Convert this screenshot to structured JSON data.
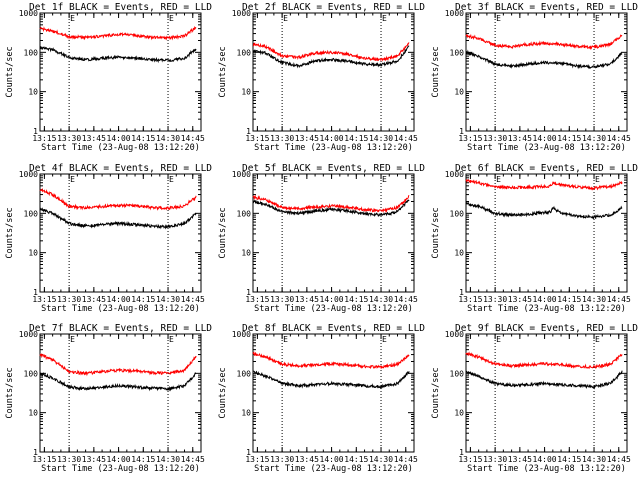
{
  "chart_data": [
    {
      "type": "line",
      "title": "Det 1f BLACK = Events, RED = LLD",
      "xlabel": "Start Time (23-Aug-08 13:12:20)",
      "ylabel": "Counts/sec",
      "yscale": "log",
      "ylim": [
        1,
        1000
      ],
      "xlim": [
        "13:12:20",
        "14:50:00"
      ],
      "xticks": [
        "13:15",
        "13:30",
        "13:45",
        "14:00",
        "14:15",
        "14:30",
        "14:45"
      ],
      "yticks": [
        "1",
        "10",
        "100",
        "1000"
      ],
      "markers": [
        {
          "label": "E",
          "time": "13:30"
        },
        {
          "label": "E",
          "time": "14:30"
        }
      ],
      "series": [
        {
          "color": "#ff0000",
          "x": [
            "13:12:20",
            "13:20",
            "13:30",
            "13:40",
            "13:50",
            "14:00",
            "14:10",
            "14:20",
            "14:30",
            "14:40",
            "14:47"
          ],
          "y": [
            400,
            350,
            250,
            240,
            260,
            290,
            270,
            240,
            230,
            260,
            430
          ]
        },
        {
          "color": "#000000",
          "x": [
            "13:12:20",
            "13:20",
            "13:30",
            "13:40",
            "13:50",
            "14:00",
            "14:10",
            "14:20",
            "14:30",
            "14:40",
            "14:47"
          ],
          "y": [
            130,
            115,
            75,
            65,
            70,
            75,
            70,
            65,
            62,
            70,
            125
          ]
        }
      ]
    },
    {
      "type": "line",
      "title": "Det 2f BLACK = Events, RED = LLD",
      "xlabel": "Start Time (23-Aug-08 13:12:20)",
      "ylabel": "Counts/sec",
      "yscale": "log",
      "ylim": [
        1,
        1000
      ],
      "xlim": [
        "13:12:20",
        "14:50:00"
      ],
      "xticks": [
        "13:15",
        "13:30",
        "13:45",
        "14:00",
        "14:15",
        "14:30",
        "14:45"
      ],
      "yticks": [
        "1",
        "10",
        "100",
        "1000"
      ],
      "markers": [
        {
          "label": "E",
          "time": "13:30"
        },
        {
          "label": "E",
          "time": "14:30"
        }
      ],
      "series": [
        {
          "color": "#ff0000",
          "x": [
            "13:12:20",
            "13:20",
            "13:30",
            "13:40",
            "13:50",
            "14:00",
            "14:10",
            "14:20",
            "14:30",
            "14:40",
            "14:47"
          ],
          "y": [
            160,
            140,
            80,
            75,
            95,
            100,
            90,
            70,
            65,
            80,
            180
          ]
        },
        {
          "color": "#000000",
          "x": [
            "13:12:20",
            "13:20",
            "13:30",
            "13:40",
            "13:50",
            "14:00",
            "14:10",
            "14:20",
            "14:30",
            "14:40",
            "14:47"
          ],
          "y": [
            110,
            95,
            55,
            45,
            60,
            65,
            60,
            50,
            48,
            60,
            140
          ]
        }
      ]
    },
    {
      "type": "line",
      "title": "Det 3f BLACK = Events, RED = LLD",
      "xlabel": "Start Time (23-Aug-08 13:12:20)",
      "ylabel": "Counts/sec",
      "yscale": "log",
      "ylim": [
        1,
        1000
      ],
      "xlim": [
        "13:12:20",
        "14:50:00"
      ],
      "xticks": [
        "13:15",
        "13:30",
        "13:45",
        "14:00",
        "14:15",
        "14:30",
        "14:45"
      ],
      "yticks": [
        "1",
        "10",
        "100",
        "1000"
      ],
      "markers": [
        {
          "label": "E",
          "time": "13:30"
        },
        {
          "label": "E",
          "time": "14:30"
        }
      ],
      "series": [
        {
          "color": "#ff0000",
          "x": [
            "13:12:20",
            "13:20",
            "13:30",
            "13:40",
            "13:50",
            "14:00",
            "14:10",
            "14:20",
            "14:30",
            "14:40",
            "14:47"
          ],
          "y": [
            260,
            230,
            150,
            140,
            160,
            170,
            160,
            140,
            135,
            160,
            270
          ]
        },
        {
          "color": "#000000",
          "x": [
            "13:12:20",
            "13:20",
            "13:30",
            "13:40",
            "13:50",
            "14:00",
            "14:10",
            "14:20",
            "14:30",
            "14:40",
            "14:47"
          ],
          "y": [
            100,
            80,
            50,
            45,
            50,
            55,
            52,
            45,
            42,
            50,
            95
          ]
        }
      ]
    },
    {
      "type": "line",
      "title": "Det 4f BLACK = Events, RED = LLD",
      "xlabel": "Start Time (23-Aug-08 13:12:20)",
      "ylabel": "Counts/sec",
      "yscale": "log",
      "ylim": [
        1,
        1000
      ],
      "xlim": [
        "13:12:20",
        "14:50:00"
      ],
      "xticks": [
        "13:15",
        "13:30",
        "13:45",
        "14:00",
        "14:15",
        "14:30",
        "14:45"
      ],
      "yticks": [
        "1",
        "10",
        "100",
        "1000"
      ],
      "markers": [
        {
          "label": "E",
          "time": "13:30"
        },
        {
          "label": "E",
          "time": "14:30"
        }
      ],
      "series": [
        {
          "color": "#ff0000",
          "x": [
            "13:12:20",
            "13:20",
            "13:30",
            "13:40",
            "13:50",
            "14:00",
            "14:10",
            "14:20",
            "14:30",
            "14:40",
            "14:47"
          ],
          "y": [
            400,
            300,
            150,
            140,
            150,
            160,
            155,
            140,
            135,
            155,
            260
          ]
        },
        {
          "color": "#000000",
          "x": [
            "13:12:20",
            "13:20",
            "13:30",
            "13:40",
            "13:50",
            "14:00",
            "14:10",
            "14:20",
            "14:30",
            "14:40",
            "14:47"
          ],
          "y": [
            130,
            100,
            55,
            48,
            52,
            55,
            52,
            48,
            45,
            55,
            100
          ]
        }
      ]
    },
    {
      "type": "line",
      "title": "Det 5f BLACK = Events, RED = LLD",
      "xlabel": "Start Time (23-Aug-08 13:12:20)",
      "ylabel": "Counts/sec",
      "yscale": "log",
      "ylim": [
        1,
        1000
      ],
      "xlim": [
        "13:12:20",
        "14:50:00"
      ],
      "xticks": [
        "13:15",
        "13:30",
        "13:45",
        "14:00",
        "14:15",
        "14:30",
        "14:45"
      ],
      "yticks": [
        "1",
        "10",
        "100",
        "1000"
      ],
      "markers": [
        {
          "label": "E",
          "time": "13:30"
        },
        {
          "label": "E",
          "time": "14:30"
        }
      ],
      "series": [
        {
          "color": "#ff0000",
          "x": [
            "13:12:20",
            "13:20",
            "13:30",
            "13:40",
            "13:50",
            "14:00",
            "14:10",
            "14:20",
            "14:30",
            "14:40",
            "14:47"
          ],
          "y": [
            260,
            220,
            140,
            130,
            145,
            155,
            145,
            125,
            115,
            140,
            270
          ]
        },
        {
          "color": "#000000",
          "x": [
            "13:12:20",
            "13:20",
            "13:30",
            "13:40",
            "13:50",
            "14:00",
            "14:10",
            "14:20",
            "14:30",
            "14:40",
            "14:47"
          ],
          "y": [
            200,
            170,
            110,
            100,
            115,
            125,
            115,
            100,
            90,
            110,
            220
          ]
        }
      ]
    },
    {
      "type": "line",
      "title": "Det 6f BLACK = Events, RED = LLD",
      "xlabel": "Start Time (23-Aug-08 13:12:20)",
      "ylabel": "Counts/sec",
      "yscale": "log",
      "ylim": [
        1,
        1000
      ],
      "xlim": [
        "13:12:20",
        "14:50:00"
      ],
      "xticks": [
        "13:15",
        "13:30",
        "13:45",
        "14:00",
        "14:15",
        "14:30",
        "14:45"
      ],
      "yticks": [
        "1",
        "10",
        "100",
        "1000"
      ],
      "markers": [
        {
          "label": "E",
          "time": "13:30"
        },
        {
          "label": "E",
          "time": "14:30"
        }
      ],
      "series": [
        {
          "color": "#ff0000",
          "x": [
            "13:12:20",
            "13:20",
            "13:30",
            "13:40",
            "13:50",
            "14:00",
            "14:04",
            "14:05",
            "14:10",
            "14:20",
            "14:30",
            "14:40",
            "14:47"
          ],
          "y": [
            700,
            600,
            470,
            450,
            460,
            480,
            500,
            620,
            520,
            470,
            440,
            480,
            600
          ]
        },
        {
          "color": "#000000",
          "x": [
            "13:12:20",
            "13:20",
            "13:30",
            "13:40",
            "13:50",
            "14:00",
            "14:04",
            "14:05",
            "14:10",
            "14:20",
            "14:30",
            "14:40",
            "14:47"
          ],
          "y": [
            180,
            150,
            100,
            90,
            95,
            105,
            110,
            140,
            100,
            85,
            80,
            90,
            140
          ]
        }
      ]
    },
    {
      "type": "line",
      "title": "Det 7f BLACK = Events, RED = LLD",
      "xlabel": "Start Time (23-Aug-08 13:12:20)",
      "ylabel": "Counts/sec",
      "yscale": "log",
      "ylim": [
        1,
        1000
      ],
      "xlim": [
        "13:12:20",
        "14:50:00"
      ],
      "xticks": [
        "13:15",
        "13:30",
        "13:45",
        "14:00",
        "14:15",
        "14:30",
        "14:45"
      ],
      "yticks": [
        "1",
        "10",
        "100",
        "1000"
      ],
      "markers": [
        {
          "label": "E",
          "time": "13:30"
        },
        {
          "label": "E",
          "time": "14:30"
        }
      ],
      "series": [
        {
          "color": "#ff0000",
          "x": [
            "13:12:20",
            "13:20",
            "13:30",
            "13:40",
            "13:50",
            "14:00",
            "14:10",
            "14:20",
            "14:30",
            "14:40",
            "14:47"
          ],
          "y": [
            300,
            220,
            110,
            100,
            110,
            120,
            115,
            105,
            100,
            120,
            260
          ]
        },
        {
          "color": "#000000",
          "x": [
            "13:12:20",
            "13:20",
            "13:30",
            "13:40",
            "13:50",
            "14:00",
            "14:10",
            "14:20",
            "14:30",
            "14:40",
            "14:47"
          ],
          "y": [
            100,
            75,
            45,
            40,
            45,
            48,
            45,
            42,
            40,
            48,
            100
          ]
        }
      ]
    },
    {
      "type": "line",
      "title": "Det 8f BLACK = Events, RED = LLD",
      "xlabel": "Start Time (23-Aug-08 13:12:20)",
      "ylabel": "Counts/sec",
      "yscale": "log",
      "ylim": [
        1,
        1000
      ],
      "xlim": [
        "13:12:20",
        "14:50:00"
      ],
      "xticks": [
        "13:15",
        "13:30",
        "13:45",
        "14:00",
        "14:15",
        "14:30",
        "14:45"
      ],
      "yticks": [
        "1",
        "10",
        "100",
        "1000"
      ],
      "markers": [
        {
          "label": "E",
          "time": "13:30"
        },
        {
          "label": "E",
          "time": "14:30"
        }
      ],
      "series": [
        {
          "color": "#ff0000",
          "x": [
            "13:12:20",
            "13:20",
            "13:30",
            "13:40",
            "13:50",
            "14:00",
            "14:10",
            "14:20",
            "14:30",
            "14:40",
            "14:47"
          ],
          "y": [
            320,
            260,
            170,
            155,
            165,
            175,
            165,
            150,
            145,
            170,
            300
          ]
        },
        {
          "color": "#000000",
          "x": [
            "13:12:20",
            "13:20",
            "13:30",
            "13:40",
            "13:50",
            "14:00",
            "14:10",
            "14:20",
            "14:30",
            "14:40",
            "14:47"
          ],
          "y": [
            110,
            85,
            55,
            48,
            52,
            55,
            52,
            48,
            46,
            55,
            110
          ]
        }
      ]
    },
    {
      "type": "line",
      "title": "Det 9f BLACK = Events, RED = LLD",
      "xlabel": "Start Time (23-Aug-08 13:12:20)",
      "ylabel": "Counts/sec",
      "yscale": "log",
      "ylim": [
        1,
        1000
      ],
      "xlim": [
        "13:12:20",
        "14:50:00"
      ],
      "xticks": [
        "13:15",
        "13:30",
        "13:45",
        "14:00",
        "14:15",
        "14:30",
        "14:45"
      ],
      "yticks": [
        "1",
        "10",
        "100",
        "1000"
      ],
      "markers": [
        {
          "label": "E",
          "time": "13:30"
        },
        {
          "label": "E",
          "time": "14:30"
        }
      ],
      "series": [
        {
          "color": "#ff0000",
          "x": [
            "13:12:20",
            "13:20",
            "13:30",
            "13:40",
            "13:50",
            "14:00",
            "14:10",
            "14:20",
            "14:30",
            "14:40",
            "14:47"
          ],
          "y": [
            320,
            260,
            170,
            155,
            165,
            175,
            165,
            150,
            145,
            170,
            310
          ]
        },
        {
          "color": "#000000",
          "x": [
            "13:12:20",
            "13:20",
            "13:30",
            "13:40",
            "13:50",
            "14:00",
            "14:10",
            "14:20",
            "14:30",
            "14:40",
            "14:47"
          ],
          "y": [
            110,
            85,
            55,
            50,
            52,
            55,
            52,
            48,
            46,
            55,
            110
          ]
        }
      ]
    }
  ]
}
